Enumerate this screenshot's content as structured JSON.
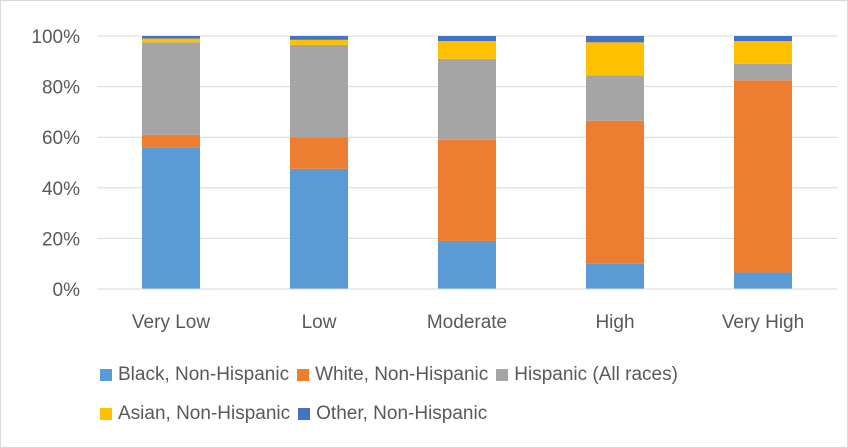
{
  "chart_data": {
    "type": "bar",
    "stacked": true,
    "categories": [
      "Very Low",
      "Low",
      "Moderate",
      "High",
      "Very High"
    ],
    "y_ticks": [
      "0%",
      "20%",
      "40%",
      "60%",
      "80%",
      "100%"
    ],
    "ylim": [
      0,
      100
    ],
    "grid": true,
    "legend_position": "bottom",
    "series": [
      {
        "name": "Black, Non-Hispanic",
        "color": "#5b9bd5",
        "values": [
          56,
          47.5,
          19,
          10,
          6.5
        ]
      },
      {
        "name": "White, Non-Hispanic",
        "color": "#ed7d31",
        "values": [
          5,
          12.5,
          40,
          56.5,
          76
        ]
      },
      {
        "name": "Hispanic (All races)",
        "color": "#a5a5a5",
        "values": [
          36.5,
          36.5,
          32,
          18,
          6.5
        ]
      },
      {
        "name": "Asian, Non-Hispanic",
        "color": "#ffc000",
        "values": [
          1.5,
          2,
          7,
          13,
          9
        ]
      },
      {
        "name": "Other, Non-Hispanic",
        "color": "#4472c4",
        "values": [
          1,
          1.5,
          2,
          2.5,
          2
        ]
      }
    ]
  }
}
